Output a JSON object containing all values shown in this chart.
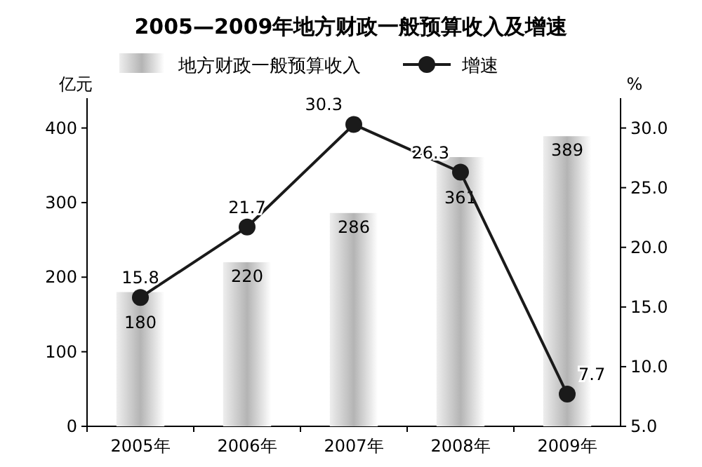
{
  "chart_data": {
    "type": "bar",
    "title": "2005—2009年地方财政一般预算收入及增速",
    "ylabel": "亿元",
    "y2label": "%",
    "categories": [
      "2005年",
      "2006年",
      "2007年",
      "2008年",
      "2009年"
    ],
    "series": [
      {
        "name": "地方财政一般预算收入",
        "color": "#b4b4b4",
        "values": [
          180,
          220,
          286,
          361,
          389
        ]
      },
      {
        "name": "增速",
        "type": "line",
        "axis": "y2",
        "color": "#1a1a1a",
        "values": [
          15.8,
          21.7,
          30.3,
          26.3,
          7.7
        ]
      }
    ],
    "ylim": [
      0,
      440
    ],
    "yticks": [
      0,
      100,
      200,
      300,
      400
    ],
    "y2lim": [
      5,
      32.5
    ],
    "y2ticks": [
      {
        "value": 5,
        "label": "5.0"
      },
      {
        "value": 10,
        "label": "10.0"
      },
      {
        "value": 15,
        "label": "15.0"
      },
      {
        "value": 20,
        "label": "20.0"
      },
      {
        "value": 25,
        "label": "25.0"
      },
      {
        "value": 30,
        "label": "30.0"
      }
    ],
    "data_labels": true,
    "legend": "top",
    "marker": "circle",
    "line_style": "solid"
  }
}
